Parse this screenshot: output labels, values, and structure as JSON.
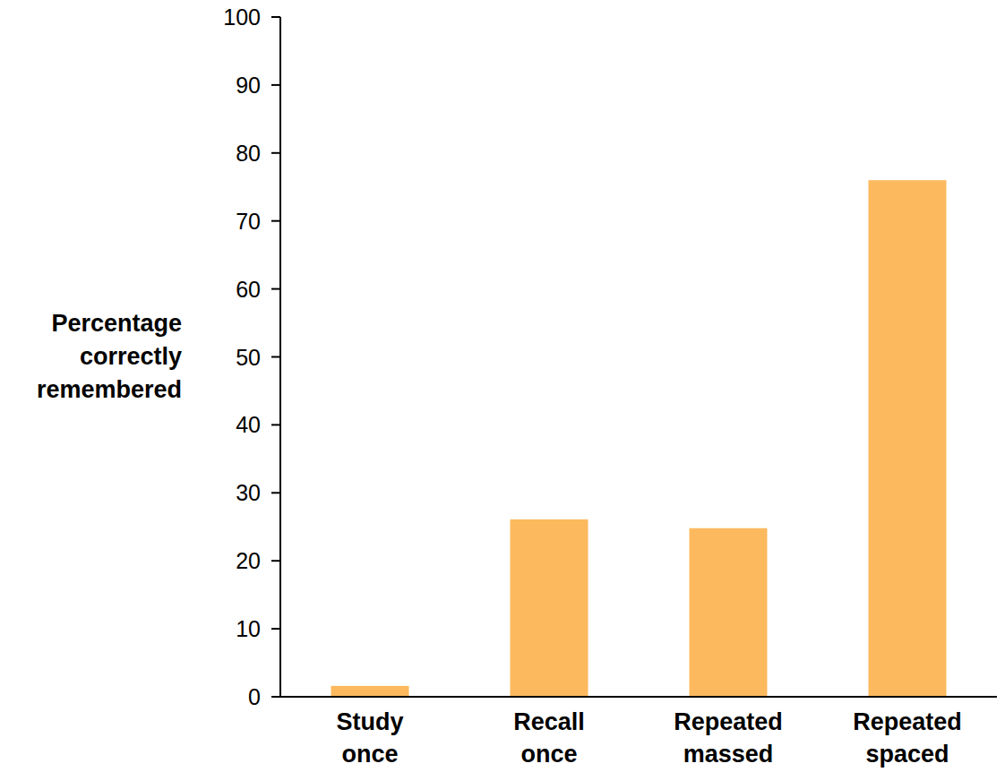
{
  "chart_data": {
    "type": "bar",
    "y_label": "Percentage correctly remembered",
    "categories": [
      "Study once",
      "Recall once",
      "Repeated massed",
      "Repeated spaced"
    ],
    "values": [
      1.6,
      26.1,
      24.8,
      76
    ],
    "color": "#fdb95e",
    "ylim": [
      0,
      100
    ],
    "yticks": [
      0,
      10,
      20,
      30,
      40,
      50,
      60,
      70,
      80,
      90,
      100
    ],
    "grid": false
  }
}
